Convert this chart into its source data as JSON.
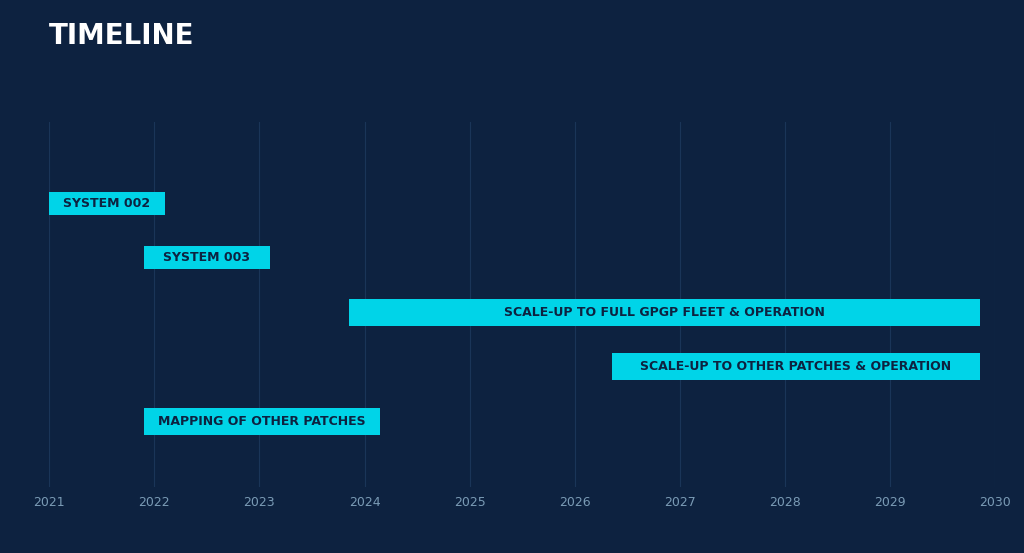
{
  "background_color": "#0d2240",
  "title": "TIMELINE",
  "title_color": "#ffffff",
  "title_fontsize": 20,
  "title_fontweight": "bold",
  "bar_color": "#00d4e8",
  "text_color": "#0d2240",
  "axis_label_color": "#7a9bb5",
  "grid_color": "#1a3558",
  "xmin": 2021,
  "xmax": 2030,
  "xticks": [
    2021,
    2022,
    2023,
    2024,
    2025,
    2026,
    2027,
    2028,
    2029,
    2030
  ],
  "bars": [
    {
      "label": "SYSTEM 002",
      "start": 2021.0,
      "end": 2022.1,
      "y": 5,
      "height": 0.42
    },
    {
      "label": "SYSTEM 003",
      "start": 2021.9,
      "end": 2023.1,
      "y": 4,
      "height": 0.42
    },
    {
      "label": "SCALE-UP TO FULL GPGP FLEET & OPERATION",
      "start": 2023.85,
      "end": 2029.85,
      "y": 3,
      "height": 0.5
    },
    {
      "label": "SCALE-UP TO OTHER PATCHES & OPERATION",
      "start": 2026.35,
      "end": 2029.85,
      "y": 2,
      "height": 0.5
    },
    {
      "label": "MAPPING OF OTHER PATCHES",
      "start": 2021.9,
      "end": 2024.15,
      "y": 1,
      "height": 0.5
    }
  ],
  "label_fontsize": 9.0,
  "ymin": -0.2,
  "ymax": 6.5
}
